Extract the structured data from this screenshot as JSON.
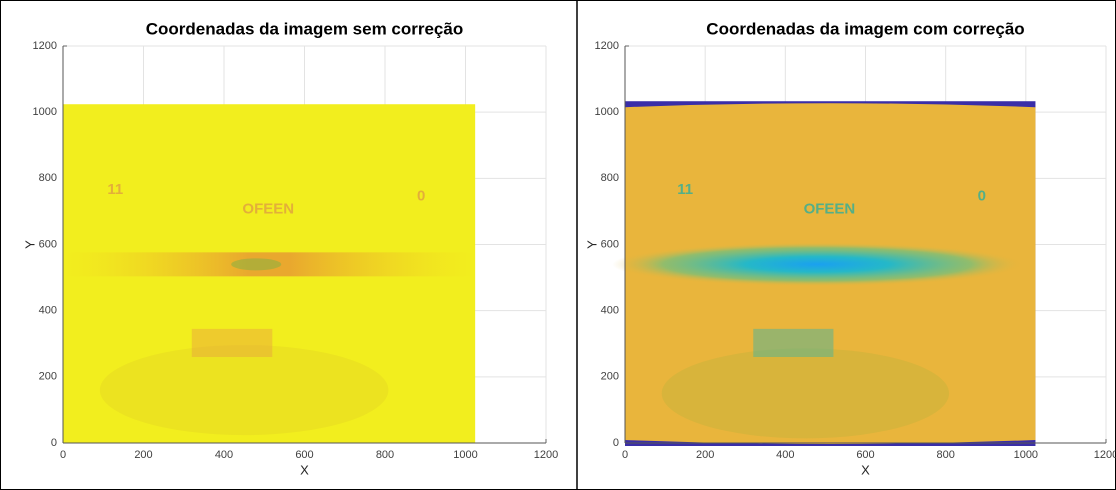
{
  "chart_data": [
    {
      "type": "image",
      "title": "Coordenadas da imagem sem correção",
      "xlabel": "X",
      "ylabel": "Y",
      "xlim": [
        0,
        1200
      ],
      "ylim": [
        0,
        1200
      ],
      "xticks": [
        0,
        200,
        400,
        600,
        800,
        1000,
        1200
      ],
      "yticks": [
        0,
        200,
        400,
        600,
        800,
        1000,
        1200
      ],
      "grid": true,
      "corrected": false,
      "image_extent": {
        "x": [
          0,
          1024
        ],
        "y": [
          0,
          1024
        ]
      },
      "annotations": [
        {
          "text": "11",
          "x": 130,
          "y": 765
        },
        {
          "text": "0",
          "x": 890,
          "y": 745
        },
        {
          "text": "OFEEN",
          "x": 510,
          "y": 705
        }
      ]
    },
    {
      "type": "image",
      "title": "Coordenadas da imagem com correção",
      "xlabel": "X",
      "ylabel": "Y",
      "xlim": [
        0,
        1200
      ],
      "ylim": [
        0,
        1200
      ],
      "xticks": [
        0,
        200,
        400,
        600,
        800,
        1000,
        1200
      ],
      "yticks": [
        0,
        200,
        400,
        600,
        800,
        1000,
        1200
      ],
      "grid": true,
      "corrected": true,
      "image_extent": {
        "x": [
          0,
          1024
        ],
        "y": [
          0,
          1024
        ]
      },
      "annotations": [
        {
          "text": "11",
          "x": 150,
          "y": 765
        },
        {
          "text": "0",
          "x": 890,
          "y": 745
        },
        {
          "text": "OFEEN",
          "x": 510,
          "y": 705
        }
      ]
    }
  ]
}
